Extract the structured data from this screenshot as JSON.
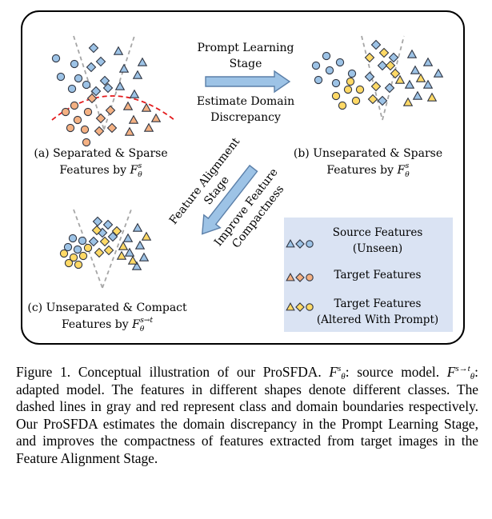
{
  "panels": {
    "a": {
      "line1": "(a) Separated & Sparse",
      "line2": "Features by",
      "model": "F",
      "sub": "θ",
      "sup": "s"
    },
    "b": {
      "line1": "(b) Unseparated & Sparse",
      "line2": "Features by",
      "model": "F",
      "sub": "θ",
      "sup": "s"
    },
    "c": {
      "line1": "(c) Unseparated & Compact",
      "line2": "Features by",
      "model": "F",
      "sub": "θ",
      "sup": "s→t"
    }
  },
  "arrow_top": {
    "above_line1": "Prompt Learning",
    "above_line2": "Stage",
    "below_line1": "Estimate Domain",
    "below_line2": "Discrepancy"
  },
  "arrow_diag": {
    "above_line1": "Feature Alignment",
    "above_line2": "Stage",
    "below_line1": "Improve Feature",
    "below_line2": "Compactness"
  },
  "legend": {
    "items": [
      {
        "line1": "Source Features",
        "line2": "(Unseen)"
      },
      {
        "line1": "Target Features",
        "line2": ""
      },
      {
        "line1": "Target Features",
        "line2": "(Altered With Prompt)"
      }
    ]
  },
  "colors": {
    "source_fill": "#9dc3e6",
    "target_fill": "#f4b183",
    "prompt_fill": "#ffd966",
    "marker_stroke": "#2f3542",
    "class_boundary": "#a6a6a6",
    "domain_boundary": "#e31a1c",
    "arrow_fill": "#9dc3e6",
    "arrow_stroke": "#5b7fa8",
    "legend_bg": "#dae3f3"
  },
  "caption": {
    "fig_label": "Figure 1.",
    "intro": "Conceptual illustration of our ProSFDA.",
    "model_source": "F",
    "model_source_sub": "θ",
    "model_source_sup": "s",
    "source_desc": ": source model.",
    "model_adapted": "F",
    "model_adapted_sub": "θ",
    "model_adapted_sup": "s→t",
    "adapted_desc": ": adapted model.",
    "body": "The features in different shapes denote different classes. The dashed lines in gray and red represent class and domain boundaries respectively. Our ProSFDA estimates the domain discrepancy in the Prompt Learning Stage, and improves the compactness of features extracted from target images in the Feature Alignment Stage."
  }
}
